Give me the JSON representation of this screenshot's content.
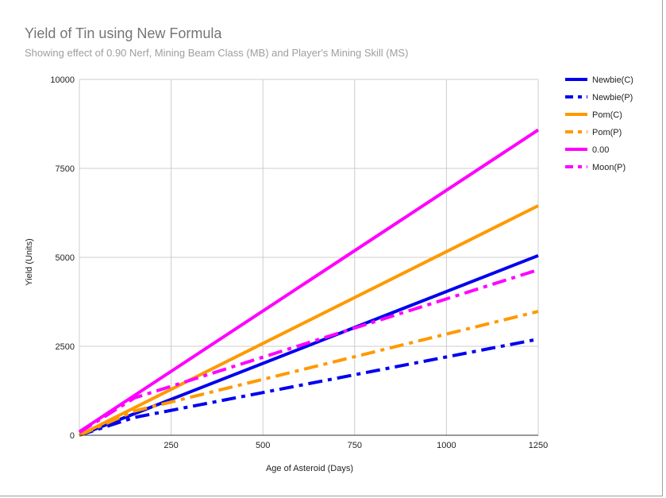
{
  "chart_data": {
    "type": "line",
    "title": "Yield of Tin using New Formula",
    "subtitle": "Showing effect of 0.90 Nerf, Mining Beam Class (MB) and Player's Mining Skill (MS)",
    "xlabel": "Age of Asteroid (Days)",
    "ylabel": "Yield (Units)",
    "xlim": [
      0,
      1250
    ],
    "ylim": [
      0,
      10000
    ],
    "x_ticks": [
      "250",
      "500",
      "750",
      "1000",
      "1250"
    ],
    "x_tick_values": [
      250,
      500,
      750,
      1000,
      1250
    ],
    "y_ticks": [
      "0",
      "2500",
      "5000",
      "7500",
      "10000"
    ],
    "y_tick_values": [
      0,
      2500,
      5000,
      7500,
      10000
    ],
    "grid": true,
    "legend_position": "right",
    "series": [
      {
        "name": "Newbie(C)",
        "color": "#0000ee",
        "style": "solid",
        "x": [
          0,
          1250
        ],
        "y": [
          0,
          5050
        ]
      },
      {
        "name": "Newbie(P)",
        "color": "#0000ee",
        "style": "dashdot",
        "x": [
          0,
          150,
          1250
        ],
        "y": [
          0,
          500,
          2700
        ]
      },
      {
        "name": "Pom(C)",
        "color": "#ff9900",
        "style": "solid",
        "x": [
          0,
          1250
        ],
        "y": [
          0,
          6450
        ]
      },
      {
        "name": "Pom(P)",
        "color": "#ff9900",
        "style": "dashdot",
        "x": [
          0,
          150,
          1250
        ],
        "y": [
          0,
          680,
          3480
        ]
      },
      {
        "name": "0.00",
        "color": "#ff00ff",
        "style": "solid",
        "x": [
          0,
          1250
        ],
        "y": [
          100,
          8580
        ]
      },
      {
        "name": "Moon(P)",
        "color": "#ff00ff",
        "style": "dashdot",
        "x": [
          0,
          150,
          1250
        ],
        "y": [
          80,
          1050,
          4650
        ]
      }
    ]
  }
}
